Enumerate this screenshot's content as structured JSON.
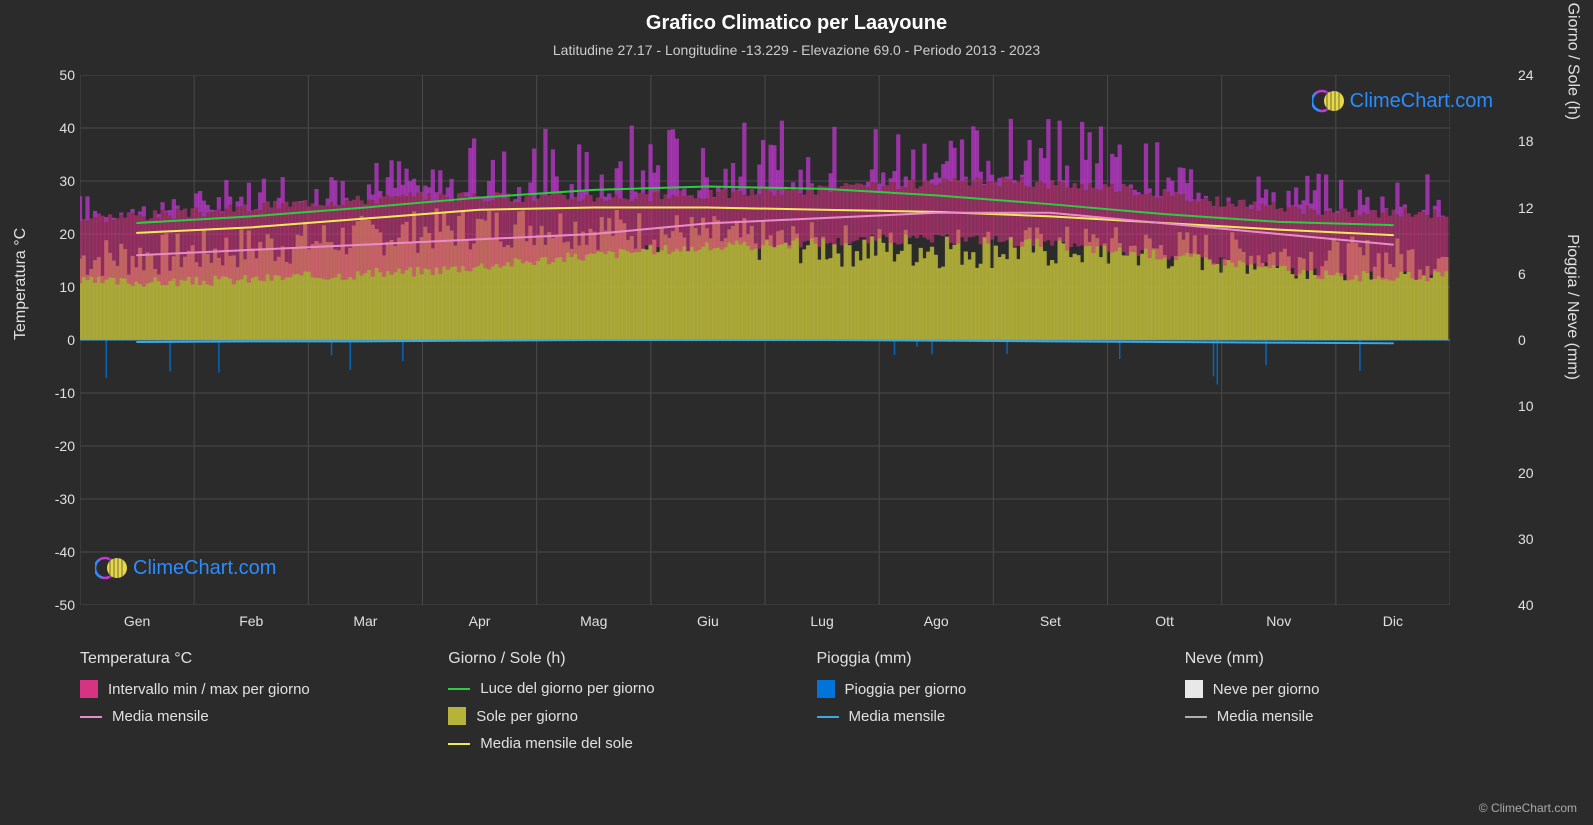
{
  "title": "Grafico Climatico per Laayoune",
  "subtitle": "Latitudine 27.17 - Longitudine -13.229 - Elevazione 69.0 - Periodo 2013 - 2023",
  "copyright": "© ClimeChart.com",
  "watermark_text": "ClimeChart.com",
  "watermark_color": "#2a8cff",
  "watermark_logo_colors": {
    "ring": "#c838d8",
    "sun": "#e6d84a"
  },
  "background_color": "#2b2b2b",
  "grid_color": "#4a4a4a",
  "axis_text_color": "#e0e0e0",
  "title_color": "#ffffff",
  "subtitle_color": "#cccccc",
  "plot": {
    "x_months": [
      "Gen",
      "Feb",
      "Mar",
      "Apr",
      "Mag",
      "Giu",
      "Lug",
      "Ago",
      "Set",
      "Ott",
      "Nov",
      "Dic"
    ],
    "y_left": {
      "label": "Temperatura °C",
      "min": -50,
      "max": 50,
      "step": 10
    },
    "y_right_top": {
      "label": "Giorno / Sole (h)",
      "min": 0,
      "max": 24,
      "step": 6
    },
    "y_right_bottom": {
      "label": "Pioggia / Neve (mm)",
      "min": 0,
      "max": 40,
      "step": 10,
      "inverted": true
    },
    "series": {
      "temp_range": {
        "type": "area_band_daily",
        "color_fill": "#d63384",
        "color_spikes": "#c838d8",
        "min": [
          11,
          11,
          12,
          13,
          15,
          17,
          18,
          19,
          19,
          17,
          15,
          12
        ],
        "max": [
          23,
          24,
          26,
          27,
          27,
          27,
          28,
          29,
          30,
          29,
          26,
          24
        ],
        "spike_max": [
          28,
          29,
          35,
          37,
          40,
          44,
          42,
          44,
          44,
          41,
          36,
          32
        ]
      },
      "temp_mean": {
        "type": "line",
        "color": "#e88cc8",
        "width": 2,
        "values": [
          16,
          17,
          18,
          19,
          20,
          22,
          23,
          24,
          24,
          22,
          20,
          18
        ]
      },
      "daylight": {
        "type": "line",
        "color": "#2ecc40",
        "width": 2,
        "values_h": [
          10.6,
          11.2,
          12.0,
          12.9,
          13.6,
          13.9,
          13.7,
          13.1,
          12.3,
          11.4,
          10.7,
          10.4
        ]
      },
      "sun_area": {
        "type": "area_daily",
        "color": "#b5b33a",
        "values_h": [
          7.0,
          7.5,
          8.5,
          9.5,
          10.0,
          9.5,
          8.5,
          8.0,
          8.0,
          8.0,
          7.5,
          7.0
        ]
      },
      "sun_mean": {
        "type": "line",
        "color": "#f2e85c",
        "width": 2,
        "values_h": [
          9.7,
          10.2,
          11.0,
          11.8,
          12.0,
          12.0,
          11.8,
          11.6,
          11.2,
          10.6,
          10.0,
          9.5
        ]
      },
      "rain_daily": {
        "type": "bar_down_daily",
        "color": "#0074d9",
        "sparse_spikes_mm": [
          3,
          2,
          4,
          1,
          0,
          0,
          0,
          1,
          2,
          3,
          5,
          6
        ]
      },
      "rain_mean": {
        "type": "line",
        "color": "#3da9e0",
        "width": 2,
        "values_mm": [
          0.3,
          0.2,
          0.2,
          0.1,
          0.0,
          0.0,
          0.0,
          0.1,
          0.2,
          0.3,
          0.4,
          0.5
        ]
      },
      "snow_daily": {
        "type": "bar_down_daily",
        "color": "#e8e8e8",
        "values_mm": [
          0,
          0,
          0,
          0,
          0,
          0,
          0,
          0,
          0,
          0,
          0,
          0
        ]
      },
      "snow_mean": {
        "type": "line",
        "color": "#b0b0b0",
        "width": 2,
        "values_mm": [
          0,
          0,
          0,
          0,
          0,
          0,
          0,
          0,
          0,
          0,
          0,
          0
        ]
      }
    }
  },
  "legend": {
    "columns": [
      {
        "heading": "Temperatura °C",
        "items": [
          {
            "swatch_type": "box",
            "color": "#d63384",
            "label": "Intervallo min / max per giorno"
          },
          {
            "swatch_type": "line",
            "color": "#e88cc8",
            "label": "Media mensile"
          }
        ]
      },
      {
        "heading": "Giorno / Sole (h)",
        "items": [
          {
            "swatch_type": "line",
            "color": "#2ecc40",
            "label": "Luce del giorno per giorno"
          },
          {
            "swatch_type": "box",
            "color": "#b5b33a",
            "label": "Sole per giorno"
          },
          {
            "swatch_type": "line",
            "color": "#f2e85c",
            "label": "Media mensile del sole"
          }
        ]
      },
      {
        "heading": "Pioggia (mm)",
        "items": [
          {
            "swatch_type": "box",
            "color": "#0074d9",
            "label": "Pioggia per giorno"
          },
          {
            "swatch_type": "line",
            "color": "#3da9e0",
            "label": "Media mensile"
          }
        ]
      },
      {
        "heading": "Neve (mm)",
        "items": [
          {
            "swatch_type": "box",
            "color": "#e8e8e8",
            "label": "Neve per giorno"
          },
          {
            "swatch_type": "line",
            "color": "#b0b0b0",
            "label": "Media mensile"
          }
        ]
      }
    ]
  }
}
